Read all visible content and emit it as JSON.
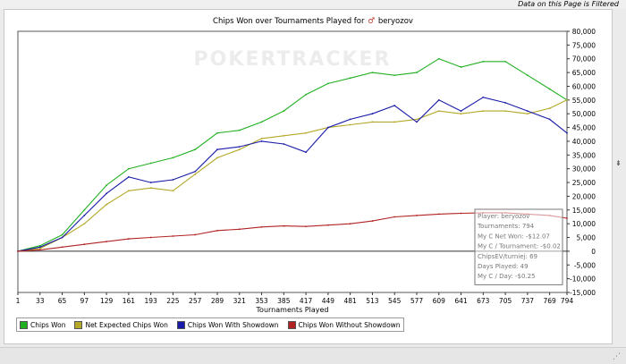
{
  "header": {
    "filter_note": "Data on this Page is Filtered"
  },
  "chart_title": {
    "text": "Chips Won over Tournaments Played for",
    "player_icon": "♂",
    "player": "beryozov"
  },
  "watermark": "POKERTRACKER",
  "colors": {
    "green": "#22b022",
    "gold": "#b4a828",
    "blue": "#1a1aa8",
    "red": "#b22222"
  },
  "chart_data": {
    "type": "line",
    "title": "Chips Won over Tournaments Played for beryozov",
    "xlabel": "Tournaments Played",
    "ylabel": "",
    "xlim": [
      1,
      794
    ],
    "ylim": [
      -15000,
      80000
    ],
    "x_ticks": [
      "1",
      "33",
      "65",
      "97",
      "129",
      "161",
      "193",
      "225",
      "257",
      "289",
      "321",
      "353",
      "385",
      "417",
      "449",
      "481",
      "513",
      "545",
      "577",
      "609",
      "641",
      "673",
      "705",
      "737",
      "769",
      "794"
    ],
    "y_ticks": [
      "80,000",
      "75,000",
      "70,000",
      "65,000",
      "60,000",
      "55,000",
      "50,000",
      "45,000",
      "40,000",
      "35,000",
      "30,000",
      "25,000",
      "20,000",
      "15,000",
      "10,000",
      "5,000",
      "0",
      "-5,000",
      "-10,000",
      "-15,000"
    ],
    "grid": false,
    "legend_position": "bottom-left",
    "series": [
      {
        "name": "Chips Won",
        "color": "#22b022",
        "x": [
          1,
          33,
          65,
          97,
          129,
          161,
          193,
          225,
          257,
          289,
          321,
          353,
          385,
          417,
          449,
          481,
          513,
          545,
          577,
          609,
          641,
          673,
          705,
          737,
          769,
          794
        ],
        "y": [
          0,
          2000,
          6000,
          15000,
          24000,
          30000,
          32000,
          34000,
          37000,
          43000,
          44000,
          47000,
          51000,
          57000,
          61000,
          63000,
          65000,
          64000,
          65000,
          70000,
          67000,
          69000,
          69000,
          64000,
          59000,
          55000
        ]
      },
      {
        "name": "Net Expected Chips Won",
        "color": "#b4a828",
        "x": [
          1,
          33,
          65,
          97,
          129,
          161,
          193,
          225,
          257,
          289,
          321,
          353,
          385,
          417,
          449,
          481,
          513,
          545,
          577,
          609,
          641,
          673,
          705,
          737,
          769,
          794
        ],
        "y": [
          0,
          1000,
          5000,
          10000,
          17000,
          22000,
          23000,
          22000,
          28000,
          34000,
          37000,
          41000,
          42000,
          43000,
          45000,
          46000,
          47000,
          47000,
          48000,
          51000,
          50000,
          51000,
          51000,
          50000,
          52000,
          55000
        ]
      },
      {
        "name": "Chips Won With Showdown",
        "color": "#1a1aa8",
        "x": [
          1,
          33,
          65,
          97,
          129,
          161,
          193,
          225,
          257,
          289,
          321,
          353,
          385,
          417,
          449,
          481,
          513,
          545,
          577,
          609,
          641,
          673,
          705,
          737,
          769,
          794
        ],
        "y": [
          0,
          1500,
          5000,
          13000,
          21000,
          27000,
          25000,
          26000,
          29000,
          37000,
          38000,
          40000,
          39000,
          36000,
          45000,
          48000,
          50000,
          53000,
          47000,
          55000,
          51000,
          56000,
          54000,
          51000,
          48000,
          43000
        ]
      },
      {
        "name": "Chips Won Without Showdown",
        "color": "#b22222",
        "x": [
          1,
          33,
          65,
          97,
          129,
          161,
          193,
          225,
          257,
          289,
          321,
          353,
          385,
          417,
          449,
          481,
          513,
          545,
          577,
          609,
          641,
          673,
          705,
          737,
          769,
          794
        ],
        "y": [
          0,
          500,
          1500,
          2500,
          3500,
          4500,
          5000,
          5500,
          6000,
          7500,
          8000,
          8800,
          9200,
          9000,
          9500,
          10000,
          11000,
          12500,
          13000,
          13500,
          13800,
          14000,
          14000,
          13500,
          13000,
          12000
        ]
      }
    ],
    "info_box": [
      "Player: beryozov",
      "Tournaments: 794",
      "My C Net Won: -$12.07",
      "My C / Tournament: -$0.02",
      "ChipsEV/turniej: 69",
      "Days Played: 49",
      "My C / Day: -$0.25"
    ]
  },
  "legend": [
    {
      "label": "Chips Won",
      "color": "#22b022"
    },
    {
      "label": "Net Expected Chips Won",
      "color": "#b4a828"
    },
    {
      "label": "Chips Won With Showdown",
      "color": "#1a1aa8"
    },
    {
      "label": "Chips Won Without Showdown",
      "color": "#b22222"
    }
  ],
  "side_handle": "⇟",
  "resize_glyph": "⋰"
}
